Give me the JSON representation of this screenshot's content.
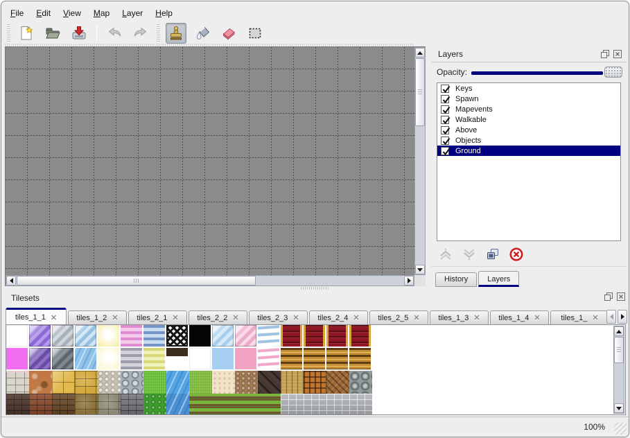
{
  "app": {
    "zoom_status": "100%",
    "accent_color": "#00007e",
    "selection_color": "#000080"
  },
  "menu_bar": {
    "items": [
      {
        "label": "File"
      },
      {
        "label": "Edit"
      },
      {
        "label": "View"
      },
      {
        "label": "Map"
      },
      {
        "label": "Layer"
      },
      {
        "label": "Help"
      }
    ]
  },
  "toolbar": {
    "buttons": [
      {
        "icon": "new-file-icon",
        "group": 1
      },
      {
        "icon": "open-file-icon",
        "group": 1
      },
      {
        "icon": "save-file-icon",
        "group": 1
      },
      {
        "icon": "undo-icon",
        "group": 2,
        "disabled": true
      },
      {
        "icon": "redo-icon",
        "group": 2,
        "disabled": true
      },
      {
        "icon": "stamp-tool-icon",
        "group": 3,
        "active": true
      },
      {
        "icon": "fill-tool-icon",
        "group": 3
      },
      {
        "icon": "eraser-tool-icon",
        "group": 3
      },
      {
        "icon": "rect-select-tool-icon",
        "group": 3
      }
    ]
  },
  "canvas": {
    "bg_color": "#8b8b8b",
    "grid_color": "#4c4c4c",
    "grid_size": 32
  },
  "layers_panel": {
    "title": "Layers",
    "float_icon": "float-icon",
    "close_icon": "close-icon",
    "opacity_label": "Opacity:",
    "opacity_value": 1.0,
    "layers": [
      {
        "name": "Keys",
        "checked": true
      },
      {
        "name": "Spawn",
        "checked": true
      },
      {
        "name": "Mapevents",
        "checked": true
      },
      {
        "name": "Walkable",
        "checked": true
      },
      {
        "name": "Above",
        "checked": true
      },
      {
        "name": "Objects",
        "checked": true
      },
      {
        "name": "Ground",
        "checked": true,
        "selected": true
      }
    ],
    "buttons": [
      {
        "icon": "move-layer-up-icon",
        "disabled": true
      },
      {
        "icon": "move-layer-down-icon",
        "disabled": true
      },
      {
        "icon": "duplicate-layer-icon",
        "disabled": false
      },
      {
        "icon": "delete-layer-icon",
        "disabled": false
      }
    ],
    "tabs": [
      {
        "label": "History",
        "active": false
      },
      {
        "label": "Layers",
        "active": true
      }
    ]
  },
  "tilesets_panel": {
    "title": "Tilesets",
    "float_icon": "float-icon",
    "close_icon": "close-icon",
    "tab_close_glyph": "✕",
    "tabs": [
      {
        "label": "tiles_1_1",
        "active": true
      },
      {
        "label": "tiles_1_2",
        "active": false
      },
      {
        "label": "tiles_2_1",
        "active": false
      },
      {
        "label": "tiles_2_2",
        "active": false
      },
      {
        "label": "tiles_2_3",
        "active": false
      },
      {
        "label": "tiles_2_4",
        "active": false
      },
      {
        "label": "tiles_2_5",
        "active": false
      },
      {
        "label": "tiles_1_3",
        "active": false
      },
      {
        "label": "tiles_1_4",
        "active": false
      },
      {
        "label": "tiles_1_",
        "active": false
      }
    ]
  },
  "palette": {
    "rows": 4,
    "cols": 16,
    "cell": 33,
    "tiles": [
      {
        "r": 0,
        "c": 0,
        "k": "blank"
      },
      {
        "r": 0,
        "c": 1,
        "k": "glass",
        "c1": "#8a68d6",
        "c2": "#b49ae8"
      },
      {
        "r": 0,
        "c": 2,
        "k": "glass",
        "c1": "#a8b0ba",
        "c2": "#d0d6dc"
      },
      {
        "r": 0,
        "c": 3,
        "k": "glass",
        "c1": "#96bede",
        "c2": "#cfe4f4"
      },
      {
        "r": 0,
        "c": 4,
        "k": "glow",
        "c1": "#f6eda0"
      },
      {
        "r": 0,
        "c": 5,
        "k": "hstripe",
        "c1": "#df8cd3",
        "c2": "#f4cceb"
      },
      {
        "r": 0,
        "c": 6,
        "k": "hstripe",
        "c1": "#7595c5",
        "c2": "#cdddf1"
      },
      {
        "r": 0,
        "c": 7,
        "k": "lattice",
        "c1": "#f8f8f8"
      },
      {
        "r": 0,
        "c": 8,
        "k": "solid",
        "c1": "#050505"
      },
      {
        "r": 0,
        "c": 9,
        "k": "glass",
        "c1": "#a8cfee",
        "c2": "#d6eaf9"
      },
      {
        "r": 0,
        "c": 10,
        "k": "glass",
        "c1": "#eeaac9",
        "c2": "#f9d8e7"
      },
      {
        "r": 0,
        "c": 11,
        "k": "ribbon",
        "c1": "#9dc3e3"
      },
      {
        "r": 0,
        "c": 12,
        "n": 4,
        "k": "carpet",
        "c1": "#8d1823",
        "c2": "#d8a43c"
      },
      {
        "r": 1,
        "c": 0,
        "k": "solid",
        "c1": "#f26ef0"
      },
      {
        "r": 1,
        "c": 1,
        "k": "glass",
        "c1": "#6a4ea6",
        "c2": "#8d70c6"
      },
      {
        "r": 1,
        "c": 2,
        "k": "glass",
        "c1": "#5c656d",
        "c2": "#7e878f"
      },
      {
        "r": 1,
        "c": 3,
        "k": "water",
        "c1": "#8fc2e9"
      },
      {
        "r": 1,
        "c": 4,
        "k": "glow",
        "c1": "#fbf5cc"
      },
      {
        "r": 1,
        "c": 5,
        "k": "hstripe",
        "c1": "#9d9dac",
        "c2": "#d3d3db"
      },
      {
        "r": 1,
        "c": 6,
        "k": "hstripe",
        "c1": "#d8d876",
        "c2": "#f1f1ba"
      },
      {
        "r": 1,
        "c": 7,
        "k": "shelf",
        "c1": "#3a2d20"
      },
      {
        "r": 1,
        "c": 8,
        "k": "blank"
      },
      {
        "r": 1,
        "c": 9,
        "k": "solid",
        "c1": "#a5cef1"
      },
      {
        "r": 1,
        "c": 10,
        "k": "solid",
        "c1": "#f2a2c2"
      },
      {
        "r": 1,
        "c": 11,
        "k": "ribbon",
        "c1": "#efa8c8"
      },
      {
        "r": 1,
        "c": 12,
        "n": 4,
        "k": "goldstripe",
        "c1": "#5e3d15",
        "c2": "#c48f35"
      },
      {
        "r": 2,
        "c": 0,
        "k": "pave",
        "c1": "#d9d5cd"
      },
      {
        "r": 2,
        "c": 1,
        "k": "cobble",
        "c1": "#c07944"
      },
      {
        "r": 2,
        "c": 2,
        "k": "tilegrid",
        "c1": "#e2bb50"
      },
      {
        "r": 2,
        "c": 3,
        "k": "stoneblock",
        "c1": "#d3a93d"
      },
      {
        "r": 2,
        "c": 4,
        "k": "pebble",
        "c1": "#c8c4b3"
      },
      {
        "r": 2,
        "c": 5,
        "k": "stones",
        "c1": "#a8b1b8"
      },
      {
        "r": 2,
        "c": 6,
        "k": "grass",
        "c1": "#6cc039"
      },
      {
        "r": 2,
        "c": 7,
        "k": "water",
        "c1": "#54a4e5"
      },
      {
        "r": 2,
        "c": 8,
        "k": "grass",
        "c1": "#82bc3d"
      },
      {
        "r": 2,
        "c": 9,
        "k": "sand",
        "c1": "#f1e2c8"
      },
      {
        "r": 2,
        "c": 10,
        "k": "gravel",
        "c1": "#a27d54"
      },
      {
        "r": 2,
        "c": 11,
        "k": "darkwood",
        "c1": "#453630"
      },
      {
        "r": 2,
        "c": 12,
        "k": "planks",
        "c1": "#c2a157"
      },
      {
        "r": 2,
        "c": 13,
        "k": "weave",
        "c1": "#be7630"
      },
      {
        "r": 2,
        "c": 14,
        "k": "herringbone",
        "c1": "#9b6735"
      },
      {
        "r": 2,
        "c": 15,
        "k": "logends",
        "c1": "#929a9a"
      },
      {
        "r": 3,
        "c": 0,
        "k": "brick",
        "c1": "#4e362a"
      },
      {
        "r": 3,
        "c": 1,
        "k": "brick",
        "c1": "#8b492c"
      },
      {
        "r": 3,
        "c": 2,
        "k": "brick",
        "c1": "#6a4725"
      },
      {
        "r": 3,
        "c": 3,
        "k": "stoneblock",
        "c1": "#897038"
      },
      {
        "r": 3,
        "c": 4,
        "k": "stoneblock",
        "c1": "#8b8976"
      },
      {
        "r": 3,
        "c": 5,
        "k": "brick",
        "c1": "#76767e"
      },
      {
        "r": 3,
        "c": 6,
        "k": "hedge",
        "c1": "#3e9d2b"
      },
      {
        "r": 3,
        "c": 7,
        "k": "water",
        "c1": "#4991d1"
      },
      {
        "r": 3,
        "c": 8,
        "n": 4,
        "k": "farm",
        "c1": "#79b43d",
        "c2": "#6f5530"
      },
      {
        "r": 3,
        "c": 12,
        "n": 4,
        "k": "brick",
        "c1": "#b2b6ba",
        "mortar": "light"
      }
    ]
  }
}
